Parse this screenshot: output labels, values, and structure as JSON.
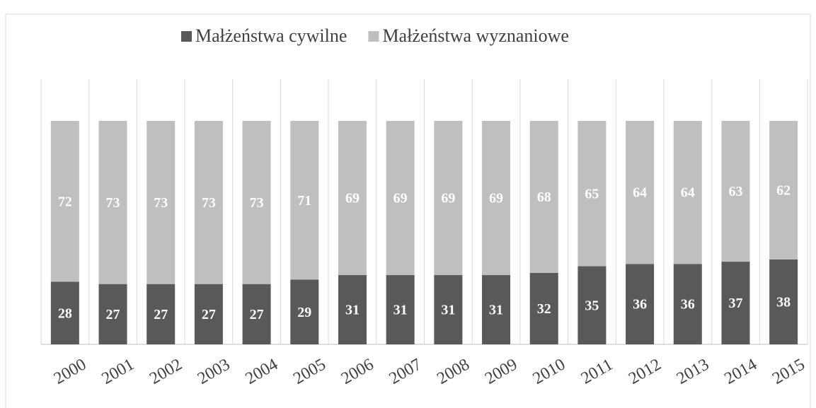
{
  "chart_data": {
    "type": "bar",
    "stacked": true,
    "categories": [
      "2000",
      "2001",
      "2002",
      "2003",
      "2004",
      "2005",
      "2006",
      "2007",
      "2008",
      "2009",
      "2010",
      "2011",
      "2012",
      "2013",
      "2014",
      "2015"
    ],
    "series": [
      {
        "name": "Małżeństwa cywilne",
        "color": "#595959",
        "values": [
          28,
          27,
          27,
          27,
          27,
          29,
          31,
          31,
          31,
          31,
          32,
          35,
          36,
          36,
          37,
          38
        ]
      },
      {
        "name": "Małżeństwa wyznaniowe",
        "color": "#bfbfbf",
        "values": [
          72,
          73,
          73,
          73,
          73,
          71,
          69,
          69,
          69,
          69,
          68,
          65,
          64,
          64,
          63,
          62
        ]
      }
    ],
    "ylim": [
      0,
      100
    ],
    "legend": "top"
  }
}
